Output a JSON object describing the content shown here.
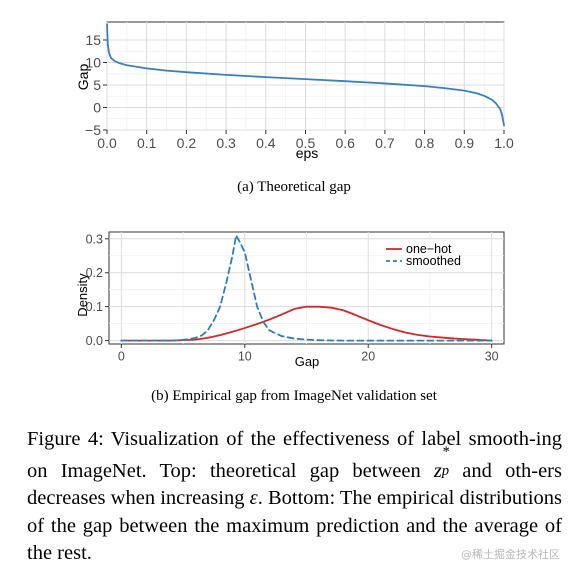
{
  "chart_data": [
    {
      "type": "line",
      "title": "",
      "xlabel": "eps",
      "ylabel": "Gap",
      "xlim": [
        0.0,
        1.0
      ],
      "ylim": [
        -5,
        19
      ],
      "x_ticks": [
        "0.0",
        "0.1",
        "0.2",
        "0.3",
        "0.4",
        "0.5",
        "0.6",
        "0.7",
        "0.8",
        "0.9",
        "1.0"
      ],
      "y_ticks": [
        "15",
        "10",
        "5",
        "0",
        "−5"
      ],
      "grid": true,
      "series": [
        {
          "color": "#3a7fc0",
          "x": [
            0.0,
            0.002,
            0.005,
            0.01,
            0.02,
            0.03,
            0.05,
            0.07,
            0.1,
            0.15,
            0.2,
            0.3,
            0.4,
            0.5,
            0.6,
            0.7,
            0.8,
            0.85,
            0.9,
            0.93,
            0.95,
            0.97,
            0.98,
            0.99,
            0.995,
            0.998,
            1.0
          ],
          "values": [
            18.5,
            14.0,
            12.2,
            11.0,
            10.3,
            9.9,
            9.4,
            9.1,
            8.7,
            8.2,
            7.85,
            7.25,
            6.75,
            6.3,
            5.85,
            5.35,
            4.75,
            4.3,
            3.75,
            3.2,
            2.6,
            1.7,
            0.9,
            -0.3,
            -1.6,
            -3.0,
            -4.0
          ]
        }
      ]
    },
    {
      "type": "line",
      "title": "",
      "xlabel": "Gap",
      "ylabel": "Density",
      "xlim": [
        -1,
        31
      ],
      "ylim": [
        -0.01,
        0.32
      ],
      "x_ticks": [
        "0",
        "10",
        "20",
        "30"
      ],
      "y_ticks": [
        "0.3",
        "0.2",
        "0.1",
        "0.0"
      ],
      "grid": true,
      "legend_position": "top-right",
      "series": [
        {
          "name": "one−hot",
          "color": "#d62728",
          "dash": "solid",
          "x": [
            0,
            4,
            6,
            7,
            8,
            9,
            10,
            11,
            12,
            13,
            14,
            15,
            16,
            17,
            18,
            19,
            20,
            21,
            22,
            23,
            24,
            25,
            26,
            27,
            28,
            29,
            30
          ],
          "values": [
            0.0,
            0.0,
            0.003,
            0.008,
            0.016,
            0.026,
            0.037,
            0.049,
            0.062,
            0.077,
            0.093,
            0.1,
            0.1,
            0.097,
            0.089,
            0.075,
            0.06,
            0.046,
            0.034,
            0.024,
            0.017,
            0.012,
            0.009,
            0.006,
            0.004,
            0.002,
            0.0
          ]
        },
        {
          "name": "smoothed",
          "color": "#2e7ebf",
          "dash": "dashed",
          "x": [
            0,
            4,
            5,
            6,
            6.5,
            7,
            7.5,
            8,
            8.5,
            9,
            9.3,
            9.6,
            10,
            10.5,
            11,
            11.5,
            12,
            13,
            14,
            15,
            16,
            18,
            20,
            25,
            30
          ],
          "values": [
            0.0,
            0.0,
            0.002,
            0.008,
            0.015,
            0.03,
            0.06,
            0.1,
            0.17,
            0.25,
            0.31,
            0.29,
            0.26,
            0.18,
            0.1,
            0.055,
            0.03,
            0.013,
            0.006,
            0.003,
            0.001,
            0.0,
            0.0,
            0.0,
            0.0
          ]
        }
      ]
    }
  ],
  "captions": {
    "top": "(a) Theoretical gap",
    "bottom": "(b) Empirical gap from ImageNet validation set"
  },
  "figure_caption": {
    "p1": "Figure 4: Visualization of the effectiveness of label smooth-ing on ImageNet. Top: theoretical gap between ",
    "sym_z": "z",
    "sym_sup": "*",
    "sym_sub": "p",
    "p2": " and oth-ers decreases when increasing ",
    "sym_eps": "ε",
    "p3": ". Bottom: The empirical distributions of the gap between the maximum prediction and the average of the rest."
  },
  "watermark": "@稀土掘金技术社区"
}
